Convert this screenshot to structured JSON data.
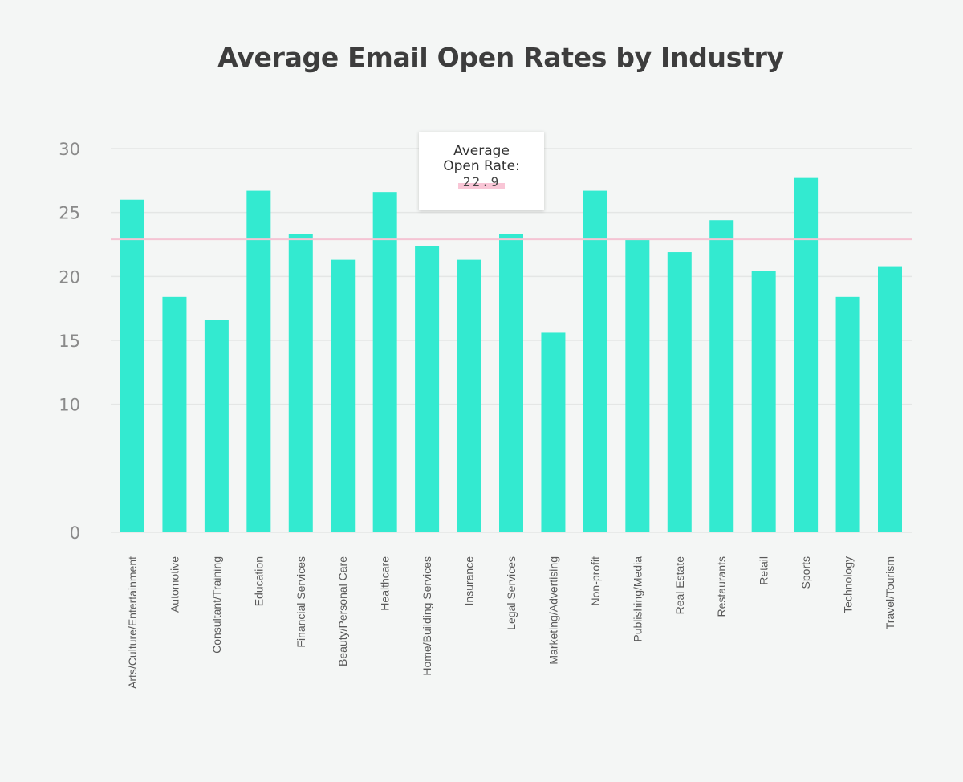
{
  "chart_data": {
    "type": "bar",
    "title": "Average Email Open Rates by Industry",
    "xlabel": "",
    "ylabel": "",
    "ylim": [
      0,
      30
    ],
    "yticks": [
      {
        "label": "0",
        "value": 0
      },
      {
        "label": "10",
        "value": 10
      },
      {
        "label": "15",
        "value": 15
      },
      {
        "label": "20",
        "value": 20
      },
      {
        "label": "25",
        "value": 25
      },
      {
        "label": "30",
        "value": 30
      }
    ],
    "grid": true,
    "categories": [
      "Arts/Culture/Entertainment",
      "Automotive",
      "Consultant/Training",
      "Education",
      "Financial Services",
      "Beauty/Personal Care",
      "Healthcare",
      "Home/Building Services",
      "Insurance",
      "Legal Services",
      "Marketing/Advertising",
      "Non-profit",
      "Publishing/Media",
      "Real Estate",
      "Restaurants",
      "Retail",
      "Sports",
      "Technology",
      "Travel/Tourism"
    ],
    "values": [
      26.0,
      18.4,
      16.6,
      26.7,
      23.3,
      21.3,
      26.6,
      22.4,
      21.3,
      23.3,
      15.6,
      26.7,
      22.9,
      21.9,
      24.4,
      20.4,
      27.7,
      18.4,
      20.8
    ],
    "average": {
      "label_line1": "Average",
      "label_line2": "Open Rate:",
      "value": "22.9",
      "numeric": 22.9
    },
    "colors": {
      "bar": "#33ead0",
      "average_line": "#f5c4d3",
      "grid": "#e4e6e5",
      "background": "#f4f6f5"
    }
  }
}
